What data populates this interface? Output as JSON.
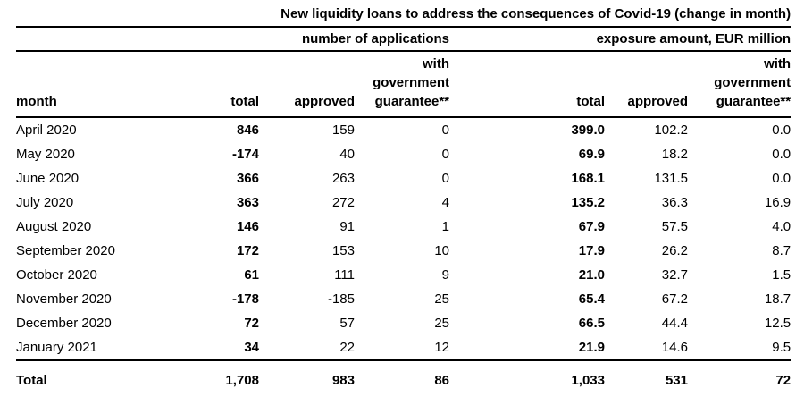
{
  "chart_data": {
    "type": "table",
    "title": "New liquidity loans to address the consequences of Covid-19 (change in month)",
    "column_groups": [
      {
        "label": "number of applications",
        "span": 3
      },
      {
        "label": "exposure amount, EUR million",
        "span": 3
      }
    ],
    "columns": [
      "month",
      "total",
      "approved",
      "with government guarantee**",
      "total",
      "approved",
      "with government guarantee**"
    ],
    "header": {
      "month": "month",
      "total": "total",
      "approved": "approved",
      "guarantee_lines": [
        "with",
        "government",
        "guarantee**"
      ]
    },
    "rows": [
      [
        "April 2020",
        "846",
        "159",
        "0",
        "399.0",
        "102.2",
        "0.0"
      ],
      [
        "May 2020",
        "-174",
        "40",
        "0",
        "69.9",
        "18.2",
        "0.0"
      ],
      [
        "June 2020",
        "366",
        "263",
        "0",
        "168.1",
        "131.5",
        "0.0"
      ],
      [
        "July 2020",
        "363",
        "272",
        "4",
        "135.2",
        "36.3",
        "16.9"
      ],
      [
        "August 2020",
        "146",
        "91",
        "1",
        "67.9",
        "57.5",
        "4.0"
      ],
      [
        "September 2020",
        "172",
        "153",
        "10",
        "17.9",
        "26.2",
        "8.7"
      ],
      [
        "October 2020",
        "61",
        "111",
        "9",
        "21.0",
        "32.7",
        "1.5"
      ],
      [
        "November 2020",
        "-178",
        "-185",
        "25",
        "65.4",
        "67.2",
        "18.7"
      ],
      [
        "December 2020",
        "72",
        "57",
        "25",
        "66.5",
        "44.4",
        "12.5"
      ],
      [
        "January 2021",
        "34",
        "22",
        "12",
        "21.9",
        "14.6",
        "9.5"
      ]
    ],
    "total_row": [
      "Total",
      "1,708",
      "983",
      "86",
      "1,033",
      "531",
      "72"
    ],
    "layout": {
      "grid": "off",
      "rules": "horizontal-only"
    }
  },
  "colors": {
    "text": "#000000",
    "background": "#ffffff",
    "rule": "#000000"
  }
}
